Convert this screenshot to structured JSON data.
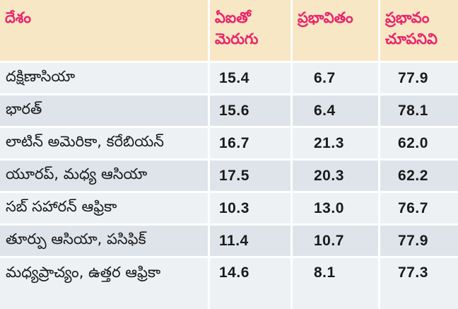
{
  "header": {
    "col1": [
      "దేశం"
    ],
    "col2": [
      "ఏఐతో",
      "మెరుగు"
    ],
    "col3": [
      "ప్రభావితం"
    ],
    "col4": [
      "ప్రభావం",
      "చూపనివి"
    ]
  },
  "rows": [
    {
      "region": "దక్షిణాసియా",
      "improved": "15.4",
      "affected": "6.7",
      "unaffected": "77.9"
    },
    {
      "region": "భారత్",
      "improved": "15.6",
      "affected": "6.4",
      "unaffected": "78.1"
    },
    {
      "region": "లాటిన్ అమెరికా, కరేబియన్",
      "improved": "16.7",
      "affected": "21.3",
      "unaffected": "62.0"
    },
    {
      "region": "యూరప్, మధ్య ఆసియా",
      "improved": "17.5",
      "affected": "20.3",
      "unaffected": "62.2"
    },
    {
      "region": "సబ్ సహారన్ ఆఫ్రికా",
      "improved": "10.3",
      "affected": "13.0",
      "unaffected": "76.7"
    },
    {
      "region": "తూర్పు ఆసియా, పసిఫిక్",
      "improved": "11.4",
      "affected": "10.7",
      "unaffected": "77.9"
    },
    {
      "region": "మధ్యప్రాచ్యం, ఉత్తర ఆఫ్రికా",
      "improved": "14.6",
      "affected": "8.1",
      "unaffected": "77.3"
    }
  ],
  "colors": {
    "header_bg": "#f7e7c4",
    "header_text": "#e8246c",
    "row_light": "#eef1f4",
    "row_dark": "#dfe4ea"
  }
}
